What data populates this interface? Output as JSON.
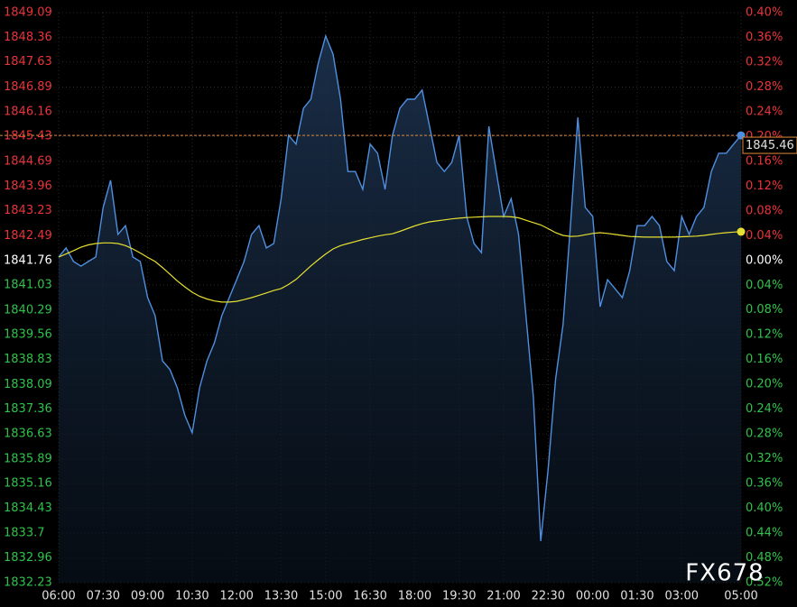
{
  "chart_data": {
    "type": "line",
    "categories": [
      "06:00",
      null,
      null,
      null,
      null,
      null,
      "07:30",
      null,
      null,
      null,
      null,
      null,
      "09:00",
      null,
      null,
      null,
      null,
      null,
      "10:30",
      null,
      null,
      null,
      null,
      null,
      "12:00",
      null,
      null,
      null,
      null,
      null,
      "13:30",
      null,
      null,
      null,
      null,
      null,
      "15:00",
      null,
      null,
      null,
      null,
      null,
      "16:30",
      null,
      null,
      null,
      null,
      null,
      "18:00",
      null,
      null,
      null,
      null,
      null,
      "19:30",
      null,
      null,
      null,
      null,
      null,
      "21:00",
      null,
      null,
      null,
      null,
      null,
      "22:30",
      null,
      null,
      null,
      null,
      null,
      "00:00",
      null,
      null,
      null,
      null,
      null,
      "01:30",
      null,
      null,
      null,
      null,
      null,
      "03:00",
      null,
      null,
      null,
      null,
      null,
      null,
      null,
      "05:00"
    ],
    "series": [
      {
        "color": "#4f8fe0",
        "values": [
          1841.86,
          1842.13,
          1841.73,
          1841.59,
          1841.73,
          1841.86,
          1843.33,
          1844.13,
          1842.53,
          1842.79,
          1841.86,
          1841.73,
          1840.66,
          1840.13,
          1838.79,
          1838.53,
          1837.99,
          1837.19,
          1836.66,
          1837.99,
          1838.79,
          1839.33,
          1840.13,
          1840.66,
          1841.19,
          1841.73,
          1842.53,
          1842.79,
          1842.13,
          1842.26,
          1843.59,
          1845.46,
          1845.2,
          1846.26,
          1846.53,
          1847.6,
          1848.4,
          1847.86,
          1846.53,
          1844.39,
          1844.39,
          1843.86,
          1845.2,
          1844.93,
          1843.86,
          1845.46,
          1846.26,
          1846.53,
          1846.53,
          1846.8,
          1845.73,
          1844.66,
          1844.39,
          1844.66,
          1845.46,
          1843.06,
          1842.26,
          1841.99,
          1845.73,
          1844.39,
          1843.06,
          1843.59,
          1842.53,
          1840.13,
          1837.72,
          1833.46,
          1835.59,
          1838.26,
          1839.86,
          1842.79,
          1845.99,
          1843.33,
          1843.06,
          1840.39,
          1841.19,
          1840.93,
          1840.66,
          1841.46,
          1842.79,
          1842.79,
          1843.06,
          1842.79,
          1841.73,
          1841.46,
          1843.06,
          1842.53,
          1843.06,
          1843.33,
          1844.39,
          1844.93,
          1844.93,
          1845.2,
          1845.46
        ]
      },
      {
        "color": "#e6e030",
        "values": [
          1841.86,
          1841.95,
          1842.05,
          1842.15,
          1842.22,
          1842.26,
          1842.28,
          1842.28,
          1842.26,
          1842.2,
          1842.1,
          1841.98,
          1841.85,
          1841.73,
          1841.55,
          1841.35,
          1841.15,
          1840.98,
          1840.82,
          1840.7,
          1840.62,
          1840.56,
          1840.53,
          1840.53,
          1840.55,
          1840.6,
          1840.66,
          1840.73,
          1840.8,
          1840.87,
          1840.93,
          1841.05,
          1841.2,
          1841.4,
          1841.6,
          1841.78,
          1841.95,
          1842.1,
          1842.2,
          1842.26,
          1842.32,
          1842.38,
          1842.43,
          1842.48,
          1842.52,
          1842.55,
          1842.62,
          1842.7,
          1842.78,
          1842.85,
          1842.9,
          1842.93,
          1842.96,
          1842.99,
          1843.01,
          1843.03,
          1843.04,
          1843.05,
          1843.06,
          1843.06,
          1843.06,
          1843.05,
          1843.02,
          1842.95,
          1842.88,
          1842.81,
          1842.7,
          1842.58,
          1842.5,
          1842.47,
          1842.48,
          1842.52,
          1842.56,
          1842.58,
          1842.56,
          1842.53,
          1842.5,
          1842.47,
          1842.46,
          1842.45,
          1842.45,
          1842.45,
          1842.45,
          1842.45,
          1842.46,
          1842.47,
          1842.48,
          1842.5,
          1842.53,
          1842.56,
          1842.58,
          1842.6,
          1842.61
        ]
      }
    ],
    "ylim": [
      1832.23,
      1849.09
    ],
    "yticks": [
      1849.09,
      1848.36,
      1847.63,
      1846.89,
      1846.16,
      1845.43,
      1844.69,
      1843.96,
      1843.23,
      1842.49,
      1841.76,
      1841.03,
      1840.29,
      1839.56,
      1838.83,
      1838.09,
      1837.36,
      1836.63,
      1835.89,
      1835.16,
      1834.43,
      1833.7,
      1832.96,
      1832.23
    ],
    "y2lim": [
      -0.52,
      0.4
    ],
    "y2ticks": [
      {
        "value": 0.4,
        "label": "0.40%"
      },
      {
        "value": 0.36,
        "label": "0.36%"
      },
      {
        "value": 0.32,
        "label": "0.32%"
      },
      {
        "value": 0.28,
        "label": "0.28%"
      },
      {
        "value": 0.24,
        "label": "0.24%"
      },
      {
        "value": 0.2,
        "label": "0.20%"
      },
      {
        "value": 0.16,
        "label": "0.16%"
      },
      {
        "value": 0.12,
        "label": "0.12%"
      },
      {
        "value": 0.08,
        "label": "0.08%"
      },
      {
        "value": 0.04,
        "label": "0.04%"
      },
      {
        "value": 0,
        "label": "0.00%"
      },
      {
        "value": -0.04,
        "label": "0.04%"
      },
      {
        "value": -0.08,
        "label": "0.08%"
      },
      {
        "value": -0.12,
        "label": "0.12%"
      },
      {
        "value": -0.16,
        "label": "0.16%"
      },
      {
        "value": -0.2,
        "label": "0.20%"
      },
      {
        "value": -0.24,
        "label": "0.24%"
      },
      {
        "value": -0.28,
        "label": "0.28%"
      },
      {
        "value": -0.32,
        "label": "0.32%"
      },
      {
        "value": -0.36,
        "label": "0.36%"
      },
      {
        "value": -0.4,
        "label": "0.40%"
      },
      {
        "value": -0.44,
        "label": "0.44%"
      },
      {
        "value": -0.48,
        "label": "0.48%"
      },
      {
        "value": -0.52,
        "label": "0.52%"
      }
    ],
    "grid": true,
    "last_price_label": "1845.46",
    "watermark": "FX678"
  }
}
